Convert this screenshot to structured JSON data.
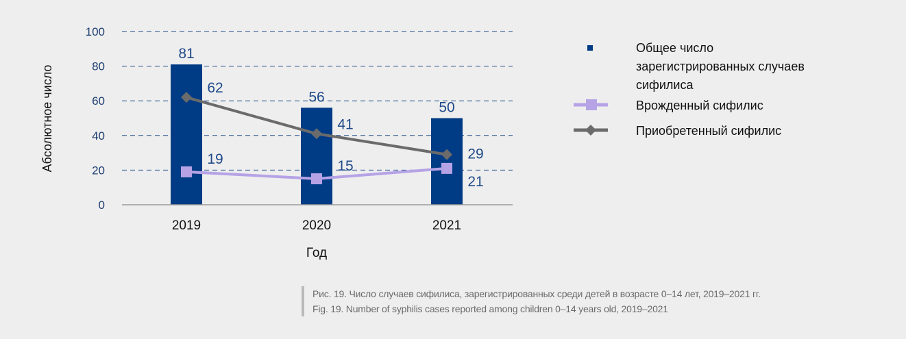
{
  "chart_data": {
    "type": "bar",
    "categories": [
      "2019",
      "2020",
      "2021"
    ],
    "series": [
      {
        "name": "Общее число зарегистрированных случаев сифилиса",
        "type": "bar",
        "values": [
          81,
          56,
          50
        ],
        "color": "#003c85"
      },
      {
        "name": "Врожденный сифилис",
        "type": "line",
        "marker": "square",
        "values": [
          19,
          15,
          21
        ],
        "color": "#b6a3e6"
      },
      {
        "name": "Приобретенный сифилис",
        "type": "line",
        "marker": "diamond",
        "values": [
          62,
          41,
          29
        ],
        "color": "#6b6b6b"
      }
    ],
    "xlabel": "Год",
    "ylabel": "Абсолютное число",
    "ylim": [
      0,
      100
    ],
    "yticks": [
      0,
      20,
      40,
      60,
      80,
      100
    ],
    "grid": true,
    "legend_placement": "right",
    "legend_lines": [
      [
        "Общее число",
        "зарегистрированных случаев",
        "сифилиса"
      ],
      [
        "Врожденный сифилис"
      ],
      [
        "Приобретенный сифилис"
      ]
    ],
    "label_color": "#1f4a8a"
  },
  "caption": {
    "ru": "Рис. 19. Число случаев сифилиса, зарегистрированных среди детей в возрасте 0–14 лет, 2019–2021 гг.",
    "en": "Fig. 19. Number of syphilis cases reported among children 0–14 years old, 2019–2021"
  }
}
